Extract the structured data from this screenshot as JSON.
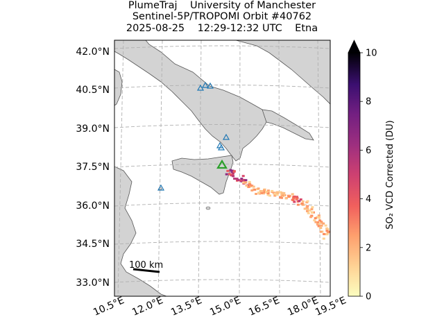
{
  "title": {
    "line1": "PlumeTraj    University of Manchester",
    "line2": "Sentinel-5P/TROPOMI Orbit #40762",
    "line3": "2025-08-25    12:29-12:32 UTC    Etna"
  },
  "map": {
    "lat_labels": [
      "42.0°N",
      "40.5°N",
      "39.0°N",
      "37.5°N",
      "36.0°N",
      "34.5°N",
      "33.0°N"
    ],
    "lon_labels": [
      "10.5°E",
      "12.0°E",
      "13.5°E",
      "15.0°E",
      "16.5°E",
      "18.0°E",
      "19.5°E"
    ],
    "scale_bar": "100 km",
    "volcano_name": "Etna",
    "colors": {
      "land": "#d3d3d3",
      "sea": "#ffffff",
      "volcano_marker": "#2ca02c",
      "other_volcanoes": "#1f77b4"
    }
  },
  "colorbar": {
    "label": "SO₂ VCD Corrected (DU)",
    "ticks": [
      "0",
      "2",
      "4",
      "6",
      "8",
      "10"
    ],
    "min": 0,
    "max": 10,
    "colormap": "magma_r"
  }
}
